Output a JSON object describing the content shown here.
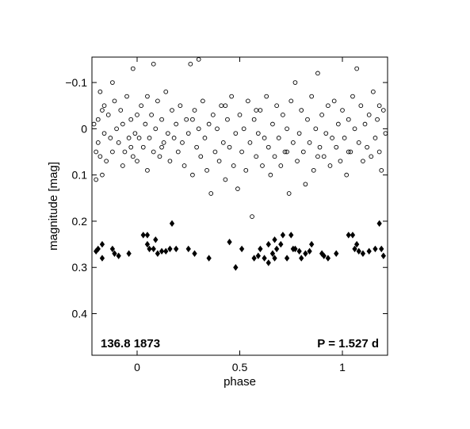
{
  "chart_data": {
    "type": "scatter",
    "title": "",
    "xlabel": "phase",
    "ylabel": "magnitude  [mag]",
    "xlim": [
      -0.22,
      1.22
    ],
    "ylim": [
      -0.155,
      0.49
    ],
    "y_inverted": true,
    "grid": false,
    "x_ticks": [
      {
        "value": 0,
        "label": "0"
      },
      {
        "value": 0.5,
        "label": "0.5"
      },
      {
        "value": 1,
        "label": "1"
      }
    ],
    "y_ticks": [
      {
        "value": -0.1,
        "label": "−0.1"
      },
      {
        "value": 0,
        "label": "0"
      },
      {
        "value": 0.1,
        "label": "0.1"
      },
      {
        "value": 0.2,
        "label": "0.2"
      },
      {
        "value": 0.3,
        "label": "0.3"
      },
      {
        "value": 0.4,
        "label": "0.4"
      }
    ],
    "annotations": {
      "object_id": "136.8 1873",
      "period": "P = 1.527 d"
    },
    "series": [
      {
        "marker": "open-circle",
        "color": "#000000",
        "points": [
          [
            -0.21,
            -0.01
          ],
          [
            -0.2,
            0.05
          ],
          [
            -0.2,
            0.11
          ],
          [
            -0.19,
            -0.02
          ],
          [
            -0.19,
            0.03
          ],
          [
            -0.18,
            -0.08
          ],
          [
            -0.18,
            0.06
          ],
          [
            -0.17,
            0.1
          ],
          [
            -0.16,
            -0.05
          ],
          [
            -0.16,
            0.01
          ],
          [
            -0.15,
            0.07
          ],
          [
            -0.14,
            -0.03
          ],
          [
            -0.13,
            0.02
          ],
          [
            -0.12,
            -0.1
          ],
          [
            -0.12,
            0.05
          ],
          [
            -0.11,
            -0.06
          ],
          [
            -0.1,
            0.0
          ],
          [
            -0.09,
            0.03
          ],
          [
            -0.08,
            -0.04
          ],
          [
            -0.07,
            0.08
          ],
          [
            -0.07,
            -0.01
          ],
          [
            -0.06,
            0.05
          ],
          [
            -0.05,
            -0.07
          ],
          [
            -0.04,
            0.02
          ],
          [
            -0.03,
            -0.02
          ],
          [
            -0.02,
            0.06
          ],
          [
            -0.02,
            -0.13
          ],
          [
            -0.01,
            0.01
          ],
          [
            0.0,
            -0.03
          ],
          [
            0.0,
            0.07
          ],
          [
            0.01,
            0.02
          ],
          [
            0.02,
            -0.05
          ],
          [
            0.03,
            0.04
          ],
          [
            0.04,
            -0.01
          ],
          [
            0.05,
            0.09
          ],
          [
            0.05,
            -0.07
          ],
          [
            0.06,
            0.02
          ],
          [
            0.07,
            -0.03
          ],
          [
            0.08,
            0.05
          ],
          [
            0.08,
            -0.14
          ],
          [
            0.09,
            0.0
          ],
          [
            0.1,
            -0.06
          ],
          [
            0.11,
            0.06
          ],
          [
            0.12,
            -0.02
          ],
          [
            0.13,
            0.03
          ],
          [
            0.14,
            -0.08
          ],
          [
            0.15,
            0.01
          ],
          [
            0.16,
            0.07
          ],
          [
            0.17,
            -0.04
          ],
          [
            0.18,
            0.02
          ],
          [
            0.19,
            -0.01
          ],
          [
            0.2,
            0.05
          ],
          [
            0.21,
            -0.05
          ],
          [
            0.22,
            0.03
          ],
          [
            0.23,
            0.08
          ],
          [
            0.24,
            -0.02
          ],
          [
            0.25,
            0.01
          ],
          [
            0.26,
            -0.14
          ],
          [
            0.27,
            0.1
          ],
          [
            0.28,
            -0.04
          ],
          [
            0.29,
            0.04
          ],
          [
            0.3,
            -0.15
          ],
          [
            0.3,
            0.0
          ],
          [
            0.31,
            0.06
          ],
          [
            0.32,
            -0.06
          ],
          [
            0.33,
            0.02
          ],
          [
            0.34,
            0.09
          ],
          [
            0.35,
            -0.01
          ],
          [
            0.36,
            0.14
          ],
          [
            0.37,
            -0.03
          ],
          [
            0.38,
            0.05
          ],
          [
            0.39,
            0.0
          ],
          [
            0.4,
            0.07
          ],
          [
            0.41,
            -0.05
          ],
          [
            0.42,
            0.03
          ],
          [
            0.43,
            0.11
          ],
          [
            0.44,
            -0.02
          ],
          [
            0.45,
            0.04
          ],
          [
            0.46,
            -0.07
          ],
          [
            0.47,
            0.08
          ],
          [
            0.48,
            0.01
          ],
          [
            0.49,
            0.13
          ],
          [
            0.5,
            -0.03
          ],
          [
            0.51,
            0.05
          ],
          [
            0.52,
            0.0
          ],
          [
            0.53,
            0.09
          ],
          [
            0.54,
            -0.06
          ],
          [
            0.55,
            0.03
          ],
          [
            0.56,
            0.19
          ],
          [
            0.57,
            -0.02
          ],
          [
            0.58,
            0.06
          ],
          [
            0.59,
            0.01
          ],
          [
            0.6,
            -0.04
          ],
          [
            0.61,
            0.08
          ],
          [
            0.62,
            0.02
          ],
          [
            0.63,
            -0.07
          ],
          [
            0.64,
            0.04
          ],
          [
            0.65,
            0.1
          ],
          [
            0.66,
            -0.01
          ],
          [
            0.67,
            0.06
          ],
          [
            0.68,
            -0.05
          ],
          [
            0.69,
            0.02
          ],
          [
            0.7,
            0.08
          ],
          [
            0.71,
            -0.03
          ],
          [
            0.72,
            0.05
          ],
          [
            0.73,
            0.0
          ],
          [
            0.74,
            0.14
          ],
          [
            0.75,
            -0.06
          ],
          [
            0.76,
            0.03
          ],
          [
            0.77,
            -0.1
          ],
          [
            0.78,
            0.07
          ],
          [
            0.79,
            0.01
          ],
          [
            0.8,
            -0.04
          ],
          [
            0.81,
            0.05
          ],
          [
            0.82,
            0.12
          ],
          [
            0.83,
            -0.02
          ],
          [
            0.84,
            0.03
          ],
          [
            0.85,
            -0.07
          ],
          [
            0.86,
            0.09
          ],
          [
            0.87,
            0.0
          ],
          [
            0.88,
            -0.12
          ],
          [
            0.89,
            0.04
          ],
          [
            0.9,
            -0.03
          ],
          [
            0.91,
            0.06
          ],
          [
            0.92,
            0.01
          ],
          [
            0.93,
            -0.05
          ],
          [
            0.94,
            0.08
          ],
          [
            0.95,
            0.02
          ],
          [
            0.96,
            -0.06
          ],
          [
            0.97,
            0.04
          ],
          [
            0.98,
            -0.01
          ],
          [
            0.99,
            0.07
          ],
          [
            1.0,
            -0.04
          ],
          [
            1.01,
            0.02
          ],
          [
            1.02,
            0.1
          ],
          [
            1.03,
            -0.02
          ],
          [
            1.04,
            0.05
          ],
          [
            1.05,
            -0.07
          ],
          [
            1.06,
            0.0
          ],
          [
            1.07,
            -0.13
          ],
          [
            1.08,
            0.03
          ],
          [
            1.09,
            -0.05
          ],
          [
            1.1,
            0.07
          ],
          [
            1.11,
            -0.01
          ],
          [
            1.12,
            0.04
          ],
          [
            1.13,
            -0.03
          ],
          [
            1.14,
            0.06
          ],
          [
            1.15,
            -0.08
          ],
          [
            1.16,
            0.02
          ],
          [
            1.17,
            -0.02
          ],
          [
            1.18,
            0.05
          ],
          [
            1.19,
            0.09
          ],
          [
            1.2,
            -0.04
          ],
          [
            1.21,
            0.01
          ],
          [
            -0.17,
            -0.04
          ],
          [
            -0.03,
            0.04
          ],
          [
            0.12,
            0.04
          ],
          [
            0.27,
            -0.02
          ],
          [
            0.43,
            -0.05
          ],
          [
            0.58,
            -0.04
          ],
          [
            0.73,
            0.05
          ],
          [
            0.88,
            0.06
          ],
          [
            1.03,
            0.05
          ],
          [
            1.18,
            -0.05
          ]
        ]
      },
      {
        "marker": "filled-diamond",
        "color": "#000000",
        "points": [
          [
            -0.2,
            0.265
          ],
          [
            -0.19,
            0.26
          ],
          [
            -0.17,
            0.28
          ],
          [
            -0.17,
            0.25
          ],
          [
            -0.12,
            0.26
          ],
          [
            -0.11,
            0.27
          ],
          [
            -0.09,
            0.275
          ],
          [
            -0.04,
            0.27
          ],
          [
            0.03,
            0.23
          ],
          [
            0.05,
            0.25
          ],
          [
            0.05,
            0.23
          ],
          [
            0.06,
            0.26
          ],
          [
            0.08,
            0.26
          ],
          [
            0.09,
            0.24
          ],
          [
            0.1,
            0.27
          ],
          [
            0.12,
            0.265
          ],
          [
            0.14,
            0.265
          ],
          [
            0.16,
            0.26
          ],
          [
            0.17,
            0.205
          ],
          [
            0.19,
            0.26
          ],
          [
            0.25,
            0.26
          ],
          [
            0.28,
            0.27
          ],
          [
            0.35,
            0.28
          ],
          [
            0.45,
            0.245
          ],
          [
            0.48,
            0.3
          ],
          [
            0.51,
            0.26
          ],
          [
            0.57,
            0.28
          ],
          [
            0.59,
            0.275
          ],
          [
            0.6,
            0.26
          ],
          [
            0.62,
            0.28
          ],
          [
            0.64,
            0.29
          ],
          [
            0.64,
            0.25
          ],
          [
            0.66,
            0.27
          ],
          [
            0.67,
            0.24
          ],
          [
            0.67,
            0.28
          ],
          [
            0.68,
            0.26
          ],
          [
            0.7,
            0.25
          ],
          [
            0.71,
            0.23
          ],
          [
            0.73,
            0.28
          ],
          [
            0.75,
            0.23
          ],
          [
            0.76,
            0.26
          ],
          [
            0.77,
            0.26
          ],
          [
            0.79,
            0.265
          ],
          [
            0.8,
            0.28
          ],
          [
            0.82,
            0.27
          ],
          [
            0.84,
            0.265
          ],
          [
            0.85,
            0.25
          ],
          [
            0.9,
            0.27
          ],
          [
            0.91,
            0.275
          ],
          [
            0.93,
            0.28
          ],
          [
            0.97,
            0.27
          ],
          [
            1.03,
            0.23
          ],
          [
            1.05,
            0.23
          ],
          [
            1.06,
            0.26
          ],
          [
            1.07,
            0.25
          ],
          [
            1.08,
            0.265
          ],
          [
            1.1,
            0.27
          ],
          [
            1.13,
            0.265
          ],
          [
            1.16,
            0.26
          ],
          [
            1.18,
            0.205
          ],
          [
            1.19,
            0.26
          ],
          [
            1.2,
            0.275
          ]
        ]
      }
    ]
  }
}
